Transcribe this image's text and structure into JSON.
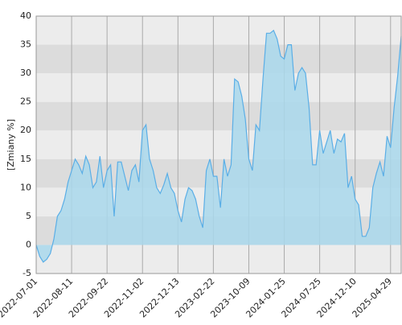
{
  "chart_data": {
    "type": "area",
    "y_label": "[Zmiany %]",
    "categories": [
      "2022-07-01",
      null,
      null,
      null,
      null,
      null,
      null,
      null,
      null,
      null,
      "2022-08-11",
      null,
      null,
      null,
      null,
      null,
      null,
      null,
      null,
      null,
      "2022-09-22",
      null,
      null,
      null,
      null,
      null,
      null,
      null,
      null,
      null,
      "2022-11-02",
      null,
      null,
      null,
      null,
      null,
      null,
      null,
      null,
      null,
      "2022-12-13",
      null,
      null,
      null,
      null,
      null,
      null,
      null,
      null,
      null,
      "2023-02-22",
      null,
      null,
      null,
      null,
      null,
      null,
      null,
      null,
      null,
      "2023-10-09",
      null,
      null,
      null,
      null,
      null,
      null,
      null,
      null,
      null,
      "2024-01-25",
      null,
      null,
      null,
      null,
      null,
      null,
      null,
      null,
      null,
      "2024-07-25",
      null,
      null,
      null,
      null,
      null,
      null,
      null,
      null,
      null,
      "2024-12-10",
      null,
      null,
      null,
      null,
      null,
      null,
      null,
      null,
      null,
      "2025-04-29",
      null,
      null,
      null
    ],
    "values": [
      0,
      -2,
      -3,
      -2.5,
      -1.5,
      1,
      5,
      6,
      8,
      11,
      13,
      15,
      14,
      12.5,
      15.5,
      14,
      10,
      11,
      15.5,
      10,
      13,
      14,
      5,
      14.5,
      14.5,
      12,
      9.5,
      13,
      14,
      11,
      20,
      21,
      15,
      13,
      10,
      9,
      10.5,
      12.5,
      10,
      9,
      6,
      4,
      8,
      10,
      9.5,
      8,
      5,
      3,
      13,
      15,
      12,
      12,
      6.5,
      15,
      12,
      14,
      29,
      28.5,
      26,
      22,
      15,
      13,
      21,
      20,
      29,
      37,
      37,
      37.5,
      36,
      33,
      32.5,
      35,
      35,
      27,
      30,
      31,
      30,
      24,
      14,
      14,
      20,
      16,
      18,
      20,
      16,
      18.5,
      18,
      19.5,
      10,
      12,
      8,
      7,
      1.5,
      1.5,
      3,
      10,
      12.5,
      14.5,
      12,
      19,
      17,
      24,
      29.5,
      36.5
    ],
    "color": "#5aaee6",
    "fill": "#a9d8ec",
    "ylim": [
      -5,
      40
    ],
    "yticks": [
      -5,
      0,
      5,
      10,
      15,
      20,
      25,
      30,
      35,
      40
    ],
    "grid": true
  }
}
